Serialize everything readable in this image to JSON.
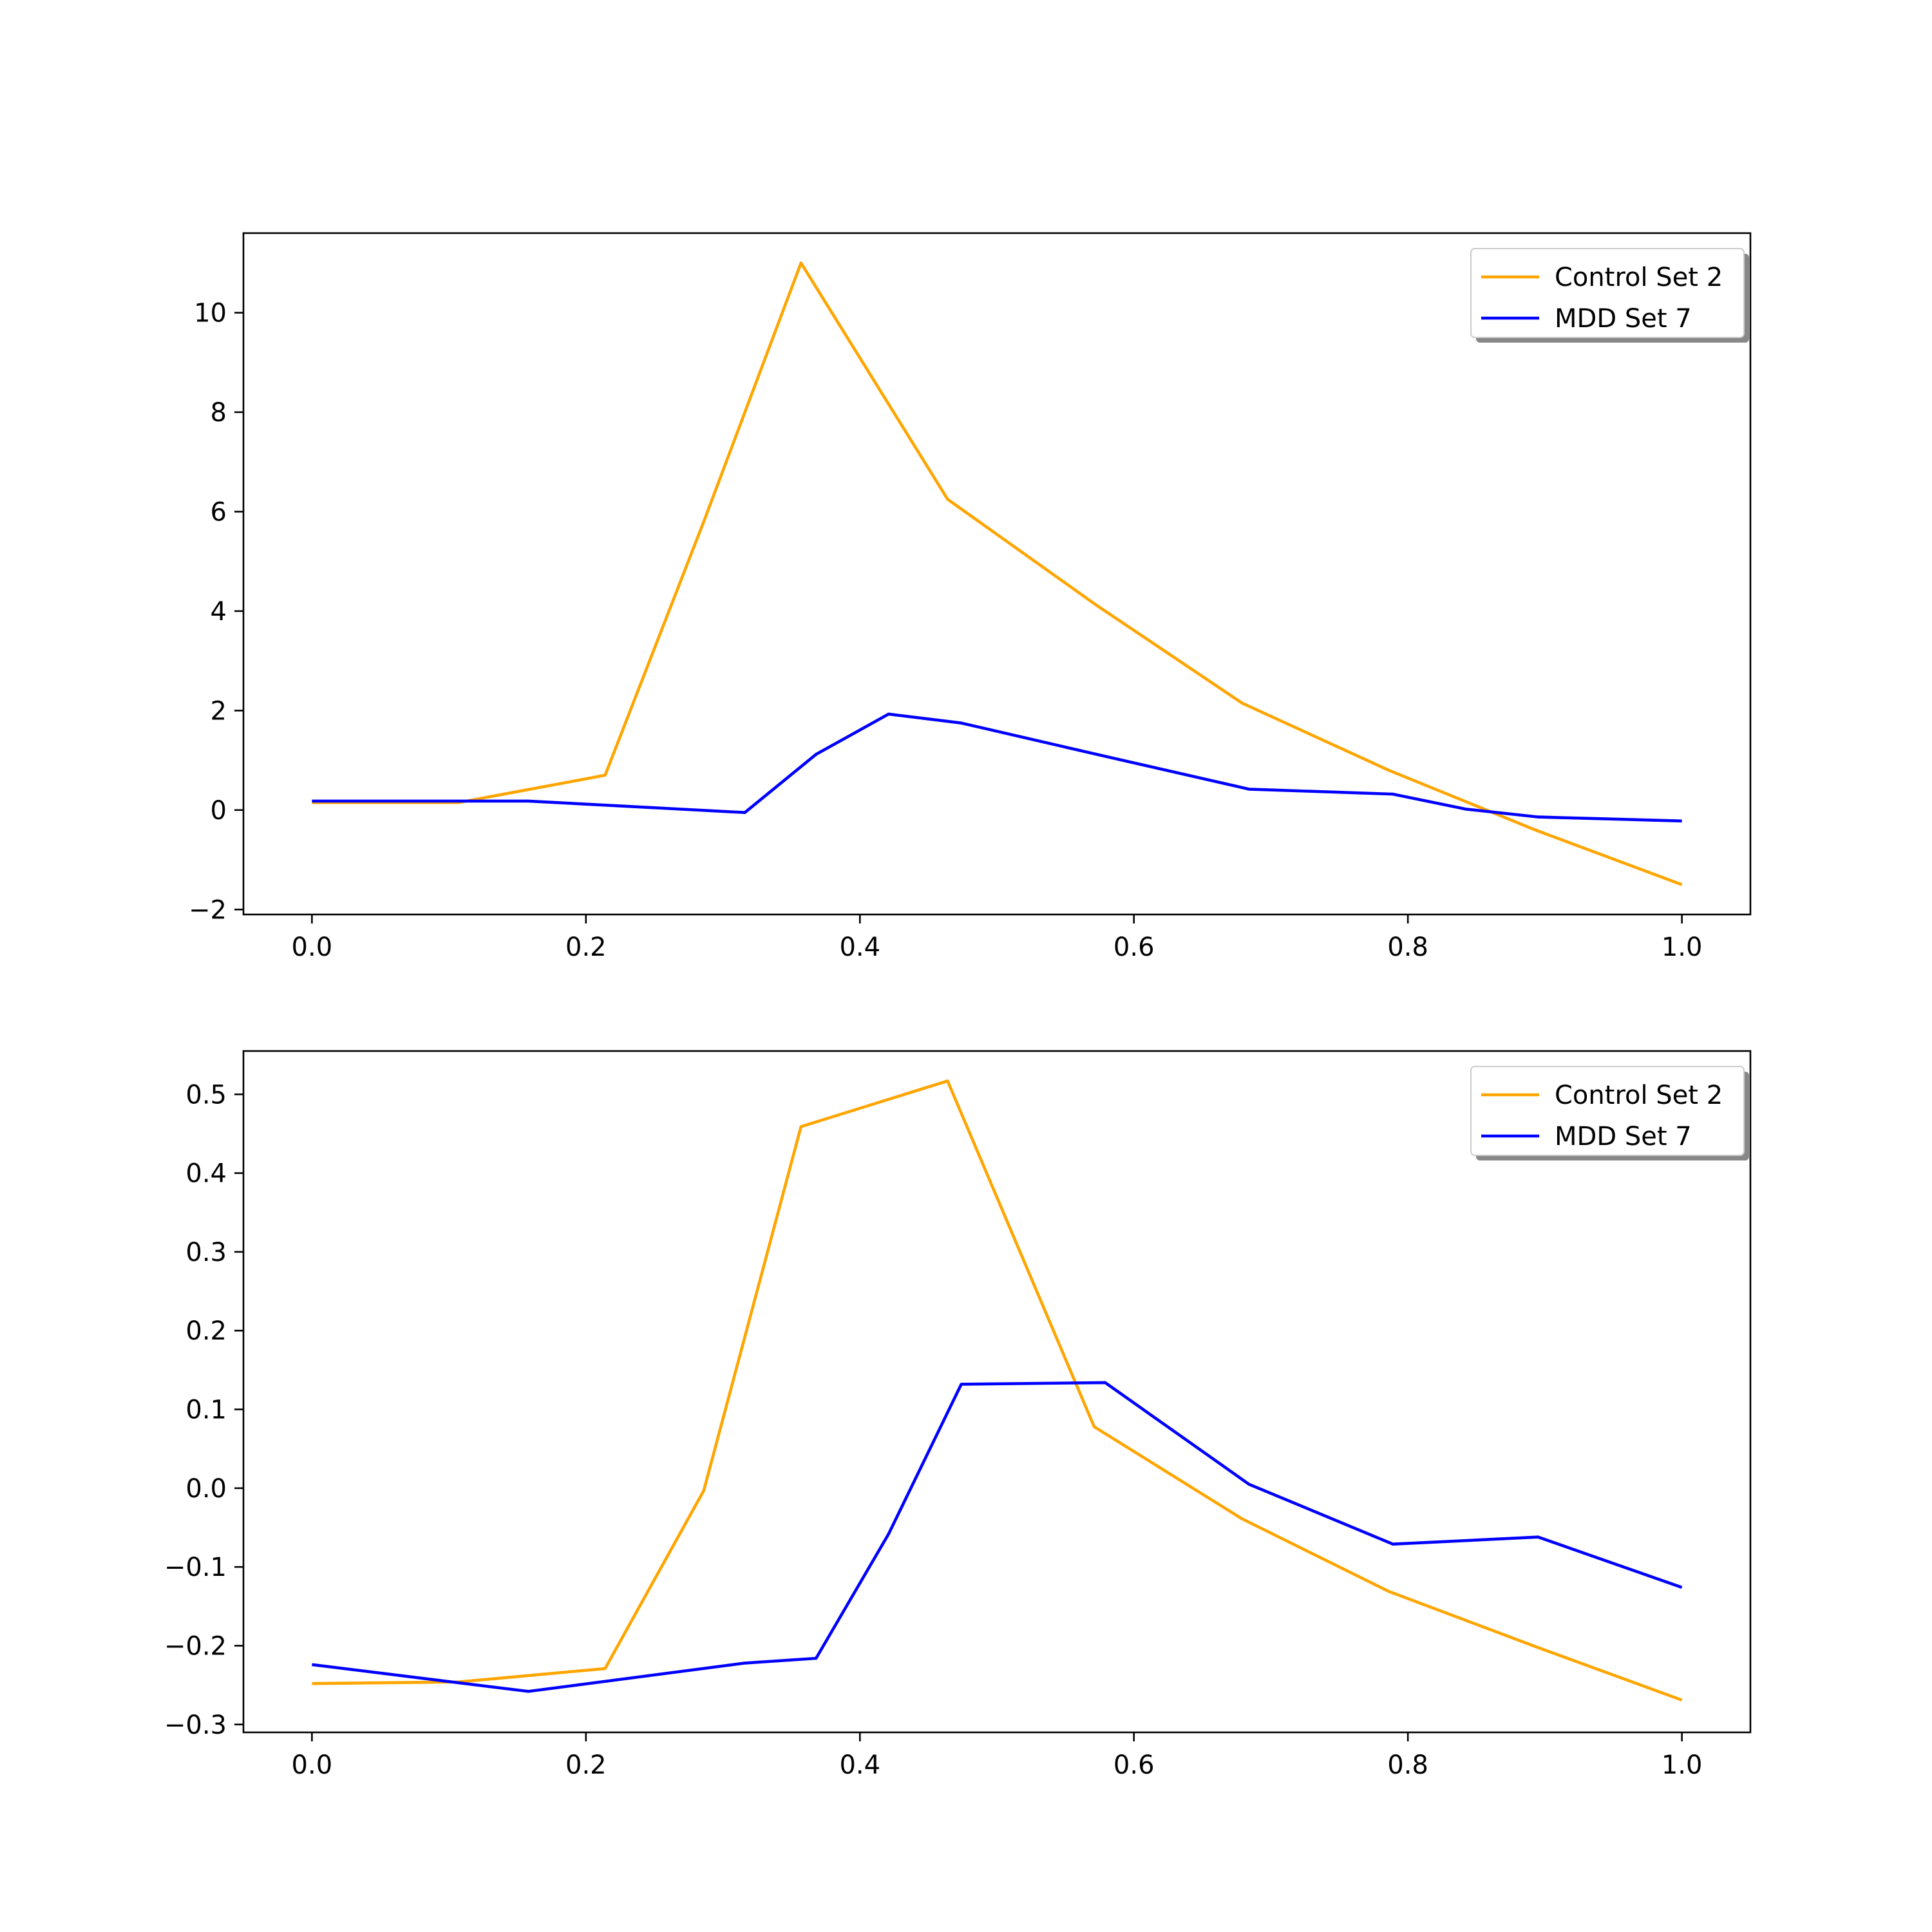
{
  "chart_data": [
    {
      "type": "line",
      "title": "",
      "xlabel": "",
      "ylabel": "",
      "xlim": [
        -0.05,
        1.05
      ],
      "ylim": [
        -2.1,
        11.6
      ],
      "xticks": [
        0.0,
        0.2,
        0.4,
        0.6,
        0.8,
        1.0
      ],
      "xtick_labels": [
        "0.0",
        "0.2",
        "0.4",
        "0.6",
        "0.8",
        "1.0"
      ],
      "yticks": [
        -2,
        0,
        2,
        4,
        6,
        8,
        10
      ],
      "ytick_labels": [
        "−2",
        "0",
        "2",
        "4",
        "6",
        "8",
        "10"
      ],
      "grid": false,
      "legend_position": "top-right",
      "series": [
        {
          "name": "Control Set 2",
          "color": "#FFA500",
          "x": [
            0.0,
            0.107,
            0.214,
            0.286,
            0.357,
            0.464,
            0.571,
            0.679,
            0.786,
            0.893,
            1.0
          ],
          "y": [
            0.15,
            0.15,
            0.7,
            5.8,
            11.0,
            6.25,
            4.15,
            2.15,
            0.8,
            -0.4,
            -1.5
          ]
        },
        {
          "name": "MDD Set 7",
          "color": "#0000FF",
          "x": [
            0.0,
            0.158,
            0.316,
            0.368,
            0.421,
            0.474,
            0.579,
            0.684,
            0.789,
            0.842,
            0.895,
            1.0
          ],
          "y": [
            0.18,
            0.18,
            -0.05,
            1.12,
            1.93,
            1.75,
            1.08,
            0.42,
            0.32,
            0.02,
            -0.14,
            -0.22
          ]
        }
      ]
    },
    {
      "type": "line",
      "title": "",
      "xlabel": "",
      "ylabel": "",
      "xlim": [
        -0.05,
        1.05
      ],
      "ylim": [
        -0.31,
        0.555
      ],
      "xticks": [
        0.0,
        0.2,
        0.4,
        0.6,
        0.8,
        1.0
      ],
      "xtick_labels": [
        "0.0",
        "0.2",
        "0.4",
        "0.6",
        "0.8",
        "1.0"
      ],
      "yticks": [
        -0.3,
        -0.2,
        -0.1,
        0.0,
        0.1,
        0.2,
        0.3,
        0.4,
        0.5
      ],
      "ytick_labels": [
        "−0.3",
        "−0.2",
        "−0.1",
        "0.0",
        "0.1",
        "0.2",
        "0.3",
        "0.4",
        "0.5"
      ],
      "grid": false,
      "legend_position": "top-right",
      "series": [
        {
          "name": "Control Set 2",
          "color": "#FFA500",
          "x": [
            0.0,
            0.107,
            0.214,
            0.286,
            0.357,
            0.464,
            0.571,
            0.679,
            0.786,
            0.893,
            1.0
          ],
          "y": [
            -0.248,
            -0.246,
            -0.229,
            -0.003,
            0.459,
            0.517,
            0.078,
            -0.039,
            -0.131,
            -0.201,
            -0.269
          ]
        },
        {
          "name": "MDD Set 7",
          "color": "#0000FF",
          "x": [
            0.0,
            0.158,
            0.316,
            0.368,
            0.421,
            0.474,
            0.579,
            0.684,
            0.789,
            0.895,
            1.0
          ],
          "y": [
            -0.224,
            -0.258,
            -0.222,
            -0.216,
            -0.058,
            0.132,
            0.134,
            0.005,
            -0.071,
            -0.062,
            -0.126
          ]
        }
      ]
    }
  ]
}
